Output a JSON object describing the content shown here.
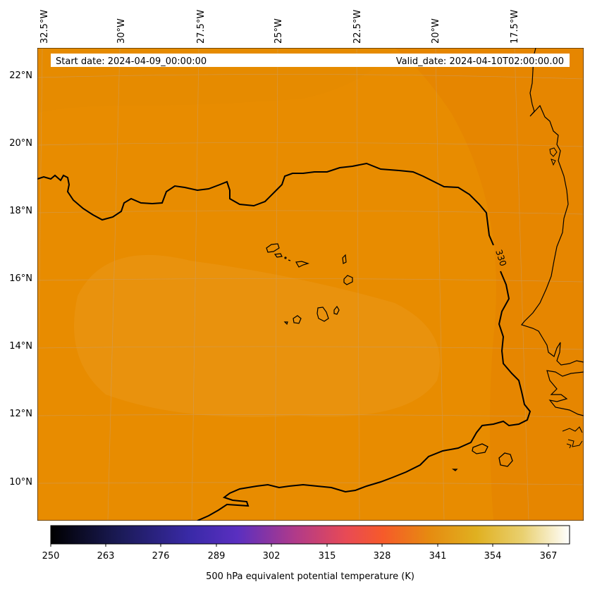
{
  "map": {
    "header": {
      "start_date": "Start date: 2024-04-09_00:00:00",
      "valid_date": "Valid_date: 2024-04-10T02:00:00.00"
    },
    "longitude_labels": [
      "32.5°W",
      "30°W",
      "27.5°W",
      "25°W",
      "22.5°W",
      "20°W",
      "17.5°W"
    ],
    "latitude_labels": [
      "22°N",
      "20°N",
      "18°N",
      "16°N",
      "14°N",
      "12°N",
      "10°N"
    ],
    "contour_label": "330",
    "field_colors": {
      "background": "#e88c00",
      "east_darker": "#e58500",
      "central_lighter": "#ea9412",
      "gridline": "#c9a070"
    }
  },
  "colorbar": {
    "title": "500 hPa equivalent potential temperature (K)",
    "ticks": [
      "250",
      "263",
      "276",
      "289",
      "302",
      "315",
      "328",
      "341",
      "354",
      "367"
    ],
    "colormap": "CMRmap",
    "range": [
      250,
      372
    ]
  }
}
